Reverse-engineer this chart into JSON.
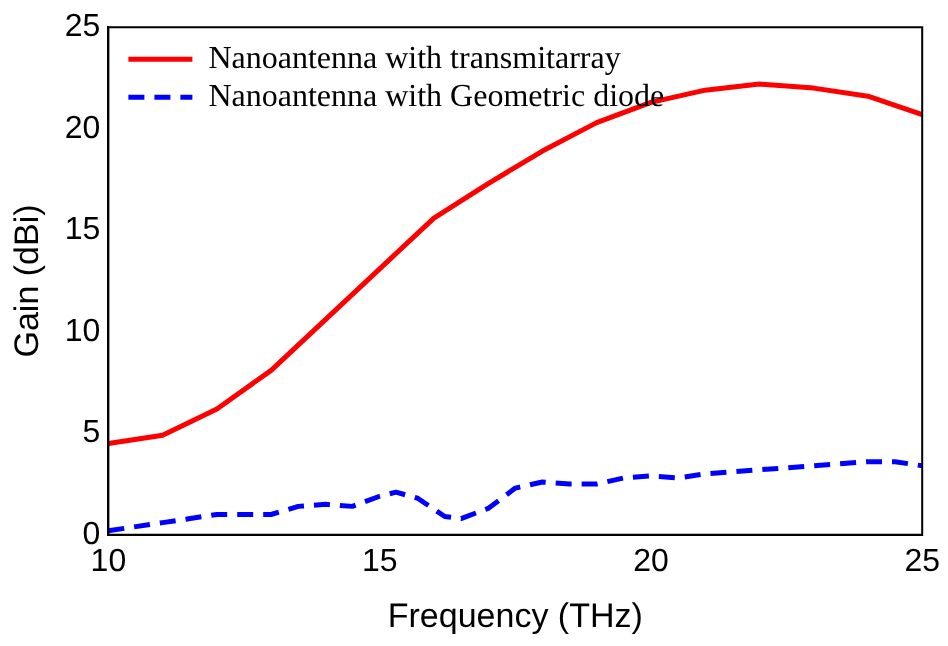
{
  "chart_data": {
    "type": "line",
    "xlabel": "Frequency (THz)",
    "ylabel": "Gain (dBi)",
    "xlim": [
      10,
      25
    ],
    "xticks": [
      10,
      15,
      20,
      25
    ],
    "ylim": [
      0,
      25
    ],
    "yticks": [
      0,
      5,
      10,
      15,
      20,
      25
    ],
    "grid": false,
    "legend": "top left",
    "marker": "none",
    "series": [
      {
        "name": "Nanoantenna with transmitarray",
        "color": "#ff0000",
        "line_style": "solid",
        "x": [
          10,
          11,
          12,
          13,
          14,
          15,
          16,
          17,
          18,
          19,
          20,
          21,
          22,
          23,
          24,
          25
        ],
        "values": [
          4.5,
          4.9,
          6.2,
          8.1,
          10.6,
          13.1,
          15.6,
          17.3,
          18.9,
          20.3,
          21.3,
          21.9,
          22.2,
          22.0,
          21.6,
          20.7
        ]
      },
      {
        "name": "Nanoantenna with Geometric diode",
        "color": "#0000ff",
        "line_style": "dashed",
        "x": [
          10,
          11,
          12,
          13,
          13.5,
          14,
          14.5,
          15,
          15.3,
          15.7,
          16.2,
          16.5,
          17,
          17.5,
          18,
          18.5,
          19,
          19.5,
          20,
          20.5,
          21,
          22,
          23,
          24,
          24.5,
          25
        ],
        "values": [
          0.2,
          0.6,
          1.0,
          1.0,
          1.4,
          1.5,
          1.4,
          1.9,
          2.1,
          1.8,
          0.9,
          0.8,
          1.3,
          2.3,
          2.6,
          2.5,
          2.5,
          2.8,
          2.9,
          2.8,
          3.0,
          3.2,
          3.4,
          3.6,
          3.6,
          3.4
        ]
      }
    ]
  }
}
